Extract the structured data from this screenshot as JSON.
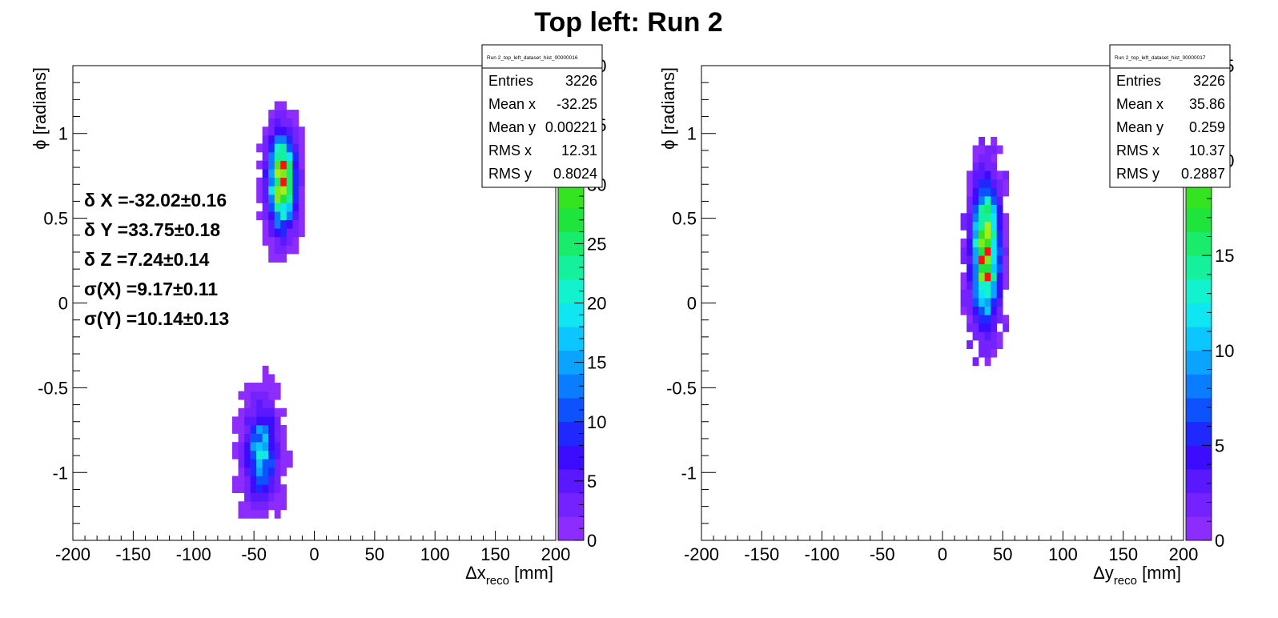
{
  "title": "Top left: Run 2",
  "chart_data": [
    {
      "type": "heatmap",
      "stats": {
        "name": "Run 2_top_left_dataset_hist_00000016",
        "rows": [
          [
            "Entries",
            "3226"
          ],
          [
            "Mean x",
            "-32.25"
          ],
          [
            "Mean y",
            "0.00221"
          ],
          [
            "RMS x",
            "12.31"
          ],
          [
            "RMS y",
            "0.8024"
          ]
        ]
      },
      "xlabel": "Δx",
      "xlabel_sub": "reco",
      "xlabel_unit": " [mm]",
      "ylabel": "ϕ [radians]",
      "xlim": [
        -200,
        200
      ],
      "ylim": [
        -1.4,
        1.4
      ],
      "x_ticks": [
        "-200",
        "-150",
        "-100",
        "-50",
        "0",
        "50",
        "100",
        "150",
        "200"
      ],
      "y_ticks": [
        [
          "1",
          "1"
        ],
        [
          "0.5",
          "0.5"
        ],
        [
          "0",
          "0"
        ],
        [
          "-0.5",
          "-0.5"
        ],
        [
          "-1",
          "-1"
        ]
      ],
      "zlim": [
        0,
        40
      ],
      "z_ticks": [
        "0",
        "5",
        "10",
        "15",
        "20",
        "25",
        "30",
        "35",
        "40"
      ],
      "annotations": [
        "δ X =-32.02±0.16",
        "δ Y =33.75±0.18",
        "δ Z =7.24±0.14",
        "σ(X) =9.17±0.11",
        "σ(Y) =10.14±0.13"
      ],
      "clusters": [
        {
          "x": -27,
          "y": 0.72,
          "sx": 7,
          "sy": 0.17,
          "peak": 38,
          "xmin": -48,
          "xmax": -5,
          "ymin": 0.24,
          "ymax": 1.22
        },
        {
          "x": -44,
          "y": -0.88,
          "sx": 8,
          "sy": 0.17,
          "peak": 18,
          "xmin": -68,
          "xmax": -20,
          "ymin": -1.27,
          "ymax": -0.34
        }
      ]
    },
    {
      "type": "heatmap",
      "stats": {
        "name": "Run 2_top_left_dataset_hist_00000017",
        "rows": [
          [
            "Entries",
            "3226"
          ],
          [
            "Mean x",
            "35.86"
          ],
          [
            "Mean y",
            "0.259"
          ],
          [
            "RMS x",
            "10.37"
          ],
          [
            "RMS y",
            "0.2887"
          ]
        ]
      },
      "xlabel": "Δy",
      "xlabel_sub": "reco",
      "xlabel_unit": " [mm]",
      "ylabel": "ϕ [radians]",
      "xlim": [
        -200,
        200
      ],
      "ylim": [
        -1.4,
        1.4
      ],
      "x_ticks": [
        "-200",
        "-150",
        "-100",
        "-50",
        "0",
        "50",
        "100",
        "150",
        "200"
      ],
      "y_ticks": [
        [
          "1",
          "1"
        ],
        [
          "0.5",
          "0.5"
        ],
        [
          "0",
          "0"
        ],
        [
          "-0.5",
          "-0.5"
        ],
        [
          "-1",
          "-1"
        ]
      ],
      "zlim": [
        0,
        25
      ],
      "z_ticks": [
        "0",
        "5",
        "10",
        "15",
        "20",
        "25"
      ],
      "annotations": [],
      "clusters": [
        {
          "x": 36,
          "y": 0.3,
          "sx": 7,
          "sy": 0.25,
          "peak": 24,
          "xmin": 5,
          "xmax": 68,
          "ymin": -0.72,
          "ymax": 0.98
        }
      ]
    }
  ]
}
